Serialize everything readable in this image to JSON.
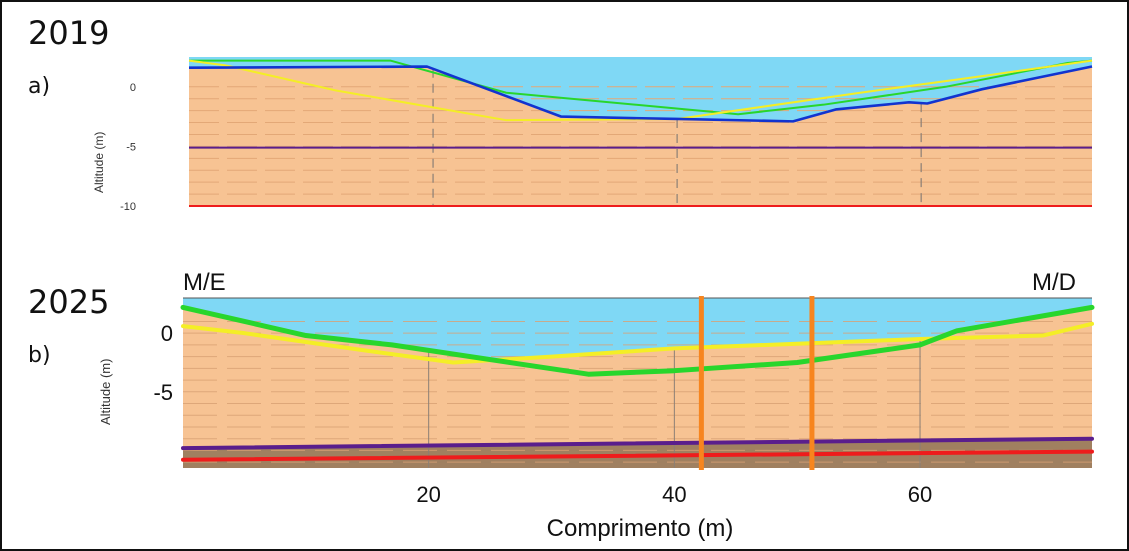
{
  "labels": {
    "year_a": "2019",
    "year_b": "2025",
    "panel_a": "a)",
    "panel_b": "b)",
    "left_bank": "M/E",
    "right_bank": "M/D",
    "xlabel": "Comprimento (m)"
  },
  "colors": {
    "water": "#7fd8f5",
    "sediment": "#f7c393",
    "bedrock": "#a08060",
    "green": "#28d62c",
    "yellow": "#f4ee26",
    "blue": "#1233cf",
    "purple": "#5a1e8c",
    "red": "#ee1c1c",
    "orange": "#f7851e"
  },
  "chart_data": [
    {
      "type": "line",
      "panel": "a)",
      "title": "2019",
      "ylabel": "Altitude (m)",
      "xlim": [
        0,
        74
      ],
      "ylim": [
        -10,
        2.5
      ],
      "yticks": [
        0,
        -5,
        -10
      ],
      "xticks": [
        20,
        40,
        60
      ],
      "xtick_labels_shown": false,
      "grid": true,
      "series": [
        {
          "color": "green",
          "x": [
            0,
            16.5,
            26,
            45,
            52,
            62,
            72,
            74
          ],
          "y": [
            2.2,
            2.2,
            -0.5,
            -2.3,
            -1.5,
            0.0,
            2.0,
            2.2
          ]
        },
        {
          "color": "yellow",
          "x": [
            0,
            3,
            12,
            26,
            40,
            55,
            65,
            74
          ],
          "y": [
            2.2,
            1.8,
            -0.3,
            -2.8,
            -2.7,
            -0.5,
            0.9,
            2.2
          ]
        },
        {
          "color": "blue",
          "x": [
            0,
            19.5,
            30.5,
            40,
            49.5,
            53,
            59,
            60.5,
            65,
            74
          ],
          "y": [
            1.6,
            1.7,
            -2.5,
            -2.7,
            -2.9,
            -1.9,
            -1.3,
            -1.4,
            -0.2,
            1.7
          ]
        },
        {
          "color": "purple",
          "x": [
            0,
            74
          ],
          "y": [
            -5.1,
            -5.1
          ]
        },
        {
          "color": "red",
          "x": [
            0,
            74
          ],
          "y": [
            -10,
            -10
          ]
        }
      ]
    },
    {
      "type": "line",
      "panel": "b)",
      "title": "2025",
      "ylabel": "Altitude (m)",
      "xlabel": "Comprimento (m)",
      "xlim": [
        0,
        74
      ],
      "ylim": [
        -11.5,
        3
      ],
      "yticks": [
        0,
        -5
      ],
      "xticks": [
        20,
        40,
        60
      ],
      "grid": true,
      "series": [
        {
          "color": "green",
          "x": [
            0,
            10,
            17,
            33,
            40,
            50,
            60,
            63,
            74
          ],
          "y": [
            2.2,
            -0.2,
            -1.0,
            -3.5,
            -3.2,
            -2.5,
            -1.0,
            0.2,
            2.2
          ]
        },
        {
          "color": "yellow",
          "x": [
            0,
            5,
            15,
            22,
            30,
            40,
            50,
            60,
            70,
            74
          ],
          "y": [
            0.6,
            0.0,
            -1.5,
            -2.5,
            -2.0,
            -1.3,
            -0.9,
            -0.5,
            -0.2,
            0.8
          ]
        },
        {
          "color": "purple",
          "x": [
            0,
            74
          ],
          "y": [
            -9.8,
            -9.0
          ]
        },
        {
          "color": "red",
          "x": [
            0,
            74
          ],
          "y": [
            -10.8,
            -10.1
          ]
        }
      ],
      "vertical_markers": {
        "color": "orange",
        "x": [
          42.2,
          51.2
        ]
      }
    }
  ]
}
